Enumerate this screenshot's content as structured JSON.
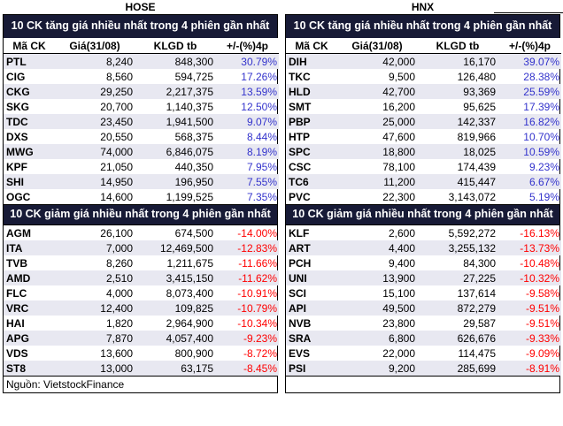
{
  "colors": {
    "title_bg": "#171A36",
    "band": "#E8E8F1",
    "positive": "#3333CC",
    "negative": "#FF0000"
  },
  "source_note": "Nguồn: VietstockFinance",
  "source_note_right": "",
  "chart_data": [
    {
      "type": "table",
      "exchange": "HOSE",
      "title": "10 CK tăng giá nhiều nhất trong 4 phiên gần nhất",
      "columns": [
        "Mã CK",
        "Giá(31/08)",
        "KLGD tb",
        "+/-(%)4p"
      ],
      "rows": [
        [
          "PTL",
          "8,240",
          "848,300",
          "30.79%"
        ],
        [
          "CIG",
          "8,560",
          "594,725",
          "17.26%"
        ],
        [
          "CKG",
          "29,250",
          "2,217,375",
          "13.59%"
        ],
        [
          "SKG",
          "20,700",
          "1,140,375",
          "12.50%"
        ],
        [
          "TDC",
          "23,450",
          "1,941,500",
          "9.07%"
        ],
        [
          "DXS",
          "20,550",
          "568,375",
          "8.44%"
        ],
        [
          "MWG",
          "74,000",
          "6,846,075",
          "8.19%"
        ],
        [
          "KPF",
          "21,050",
          "440,350",
          "7.95%"
        ],
        [
          "SHI",
          "14,950",
          "196,950",
          "7.55%"
        ],
        [
          "OGC",
          "14,600",
          "1,199,525",
          "7.35%"
        ]
      ]
    },
    {
      "type": "table",
      "exchange": "HOSE",
      "title": "10 CK giảm giá nhiều nhất trong 4 phiên gần nhất",
      "columns": [
        "Mã CK",
        "Giá(31/08)",
        "KLGD tb",
        "+/-(%)4p"
      ],
      "rows": [
        [
          "AGM",
          "26,100",
          "674,500",
          "-14.00%"
        ],
        [
          "ITA",
          "7,000",
          "12,469,500",
          "-12.83%"
        ],
        [
          "TVB",
          "8,260",
          "1,211,675",
          "-11.66%"
        ],
        [
          "AMD",
          "2,510",
          "3,415,150",
          "-11.62%"
        ],
        [
          "FLC",
          "4,000",
          "8,073,400",
          "-10.91%"
        ],
        [
          "VRC",
          "12,400",
          "109,825",
          "-10.79%"
        ],
        [
          "HAI",
          "1,820",
          "2,964,900",
          "-10.34%"
        ],
        [
          "APG",
          "7,870",
          "4,057,400",
          "-9.23%"
        ],
        [
          "VDS",
          "13,600",
          "800,900",
          "-8.72%"
        ],
        [
          "ST8",
          "13,000",
          "63,175",
          "-8.45%"
        ]
      ]
    },
    {
      "type": "table",
      "exchange": "HNX",
      "title": "10 CK tăng giá nhiều nhất trong 4 phiên gần nhất",
      "columns": [
        "Mã CK",
        "Giá(31/08)",
        "KLGD tb",
        "+/-(%)4p"
      ],
      "rows": [
        [
          "DIH",
          "42,000",
          "16,170",
          "39.07%"
        ],
        [
          "TKC",
          "9,500",
          "126,480",
          "28.38%"
        ],
        [
          "HLD",
          "42,700",
          "93,369",
          "25.59%"
        ],
        [
          "SMT",
          "16,200",
          "95,625",
          "17.39%"
        ],
        [
          "PBP",
          "25,000",
          "142,337",
          "16.82%"
        ],
        [
          "HTP",
          "47,600",
          "819,966",
          "10.70%"
        ],
        [
          "SPC",
          "18,800",
          "18,025",
          "10.59%"
        ],
        [
          "CSC",
          "78,100",
          "174,439",
          "9.23%"
        ],
        [
          "TC6",
          "11,200",
          "415,447",
          "6.67%"
        ],
        [
          "PVC",
          "22,300",
          "3,143,072",
          "5.19%"
        ]
      ]
    },
    {
      "type": "table",
      "exchange": "HNX",
      "title": "10 CK giảm giá nhiều nhất trong 4 phiên gần nhất",
      "columns": [
        "Mã CK",
        "Giá(31/08)",
        "KLGD tb",
        "+/-(%)4p"
      ],
      "rows": [
        [
          "KLF",
          "2,600",
          "5,592,272",
          "-16.13%"
        ],
        [
          "ART",
          "4,400",
          "3,255,132",
          "-13.73%"
        ],
        [
          "PCH",
          "9,400",
          "84,300",
          "-10.48%"
        ],
        [
          "UNI",
          "13,900",
          "27,225",
          "-10.32%"
        ],
        [
          "SCI",
          "15,100",
          "137,614",
          "-9.58%"
        ],
        [
          "API",
          "49,500",
          "872,279",
          "-9.51%"
        ],
        [
          "NVB",
          "23,800",
          "29,587",
          "-9.51%"
        ],
        [
          "SRA",
          "6,800",
          "626,676",
          "-9.33%"
        ],
        [
          "EVS",
          "22,000",
          "114,475",
          "-9.09%"
        ],
        [
          "PSI",
          "9,200",
          "285,699",
          "-8.91%"
        ]
      ]
    }
  ]
}
